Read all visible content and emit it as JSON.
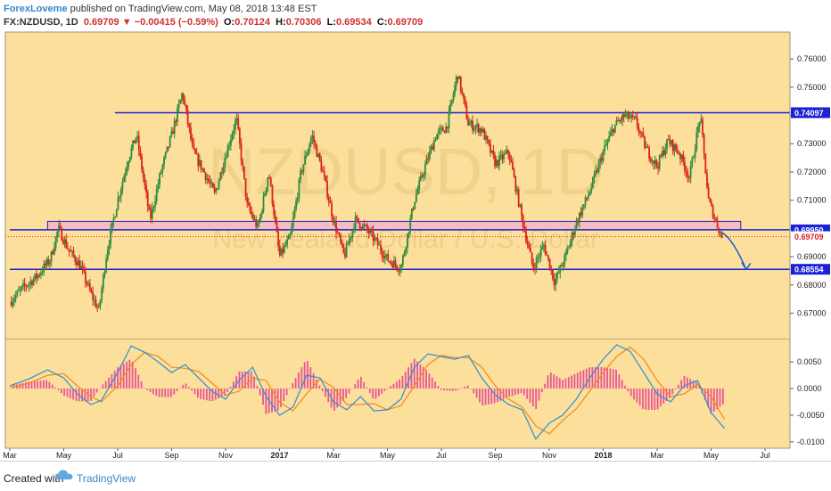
{
  "header": {
    "author": "ForexLoveme",
    "published": " published on TradingView.com, May 08, 2018 13:48 EST",
    "symbol": "FX:NZDUSD, 1D",
    "last": "0.69709",
    "change": "−0.00415 (−0.59%)",
    "o_label": "O:",
    "o": "0.70124",
    "h_label": "H:",
    "h": "0.70306",
    "l_label": "L:",
    "l": "0.69534",
    "c_label": "C:",
    "c": "0.69709"
  },
  "watermark": {
    "symbol": "NZDUSD, 1D",
    "name": "New Zealand Dollar / U.S. Dollar"
  },
  "footer": {
    "created": "Created with",
    "brand": "TradingView"
  },
  "colors": {
    "background": "#fcdf9a",
    "up_candle": "#2e8b3d",
    "down_candle": "#d9241c",
    "level_line": "#1a22d6",
    "zone_fill": "#f4b6c6",
    "macd_line": "#2e8fd6",
    "signal_line": "#f08a1c",
    "hist": "#e8569a",
    "arrow": "#1a5fd6"
  },
  "chart_data": {
    "type": "candlestick",
    "instrument": "NZDUSD",
    "timeframe": "1D",
    "x_tick_labels": [
      "Mar",
      "May",
      "Jul",
      "Sep",
      "Nov",
      "2017",
      "Mar",
      "May",
      "Jul",
      "Sep",
      "Nov",
      "2018",
      "Mar",
      "May",
      "Jul"
    ],
    "y_tick_labels": [
      "0.76000",
      "0.75000",
      "0.74000",
      "0.73000",
      "0.72000",
      "0.71000",
      "0.70000",
      "0.69000",
      "0.68000",
      "0.67000"
    ],
    "ylim": [
      0.661,
      0.7695
    ],
    "price_tags": [
      {
        "value": "0.74097",
        "y": 0.74097,
        "style": "blue"
      },
      {
        "value": "0.69950",
        "y": 0.6995,
        "style": "blue"
      },
      {
        "value": "0.69709",
        "y": 0.69709,
        "style": "red"
      },
      {
        "value": "0.68554",
        "y": 0.68554,
        "style": "blue"
      }
    ],
    "horizontal_lines": [
      {
        "y": 0.74097,
        "from_month": 3.9
      },
      {
        "y": 0.6995,
        "from_month": 0
      },
      {
        "y": 0.68554,
        "from_month": 0
      }
    ],
    "zone": {
      "y_low": 0.6995,
      "y_high": 0.7025,
      "from_month": 1.4,
      "to_month": 27.1
    },
    "projection_arrow": {
      "from": [
        26.4,
        0.6985
      ],
      "to": [
        27.3,
        0.6855
      ]
    },
    "price_path": [
      [
        0.0,
        0.674
      ],
      [
        0.5,
        0.679
      ],
      [
        1.0,
        0.683
      ],
      [
        1.5,
        0.689
      ],
      [
        1.8,
        0.7
      ],
      [
        2.2,
        0.692
      ],
      [
        2.6,
        0.687
      ],
      [
        3.0,
        0.677
      ],
      [
        3.3,
        0.671
      ],
      [
        3.6,
        0.692
      ],
      [
        4.0,
        0.71
      ],
      [
        4.4,
        0.725
      ],
      [
        4.7,
        0.733
      ],
      [
        5.2,
        0.703
      ],
      [
        5.6,
        0.72
      ],
      [
        6.0,
        0.733
      ],
      [
        6.4,
        0.748
      ],
      [
        6.8,
        0.727
      ],
      [
        7.2,
        0.72
      ],
      [
        7.6,
        0.712
      ],
      [
        8.0,
        0.726
      ],
      [
        8.4,
        0.739
      ],
      [
        8.8,
        0.708
      ],
      [
        9.2,
        0.7
      ],
      [
        9.6,
        0.72
      ],
      [
        10.0,
        0.69
      ],
      [
        10.4,
        0.697
      ],
      [
        10.8,
        0.72
      ],
      [
        11.2,
        0.733
      ],
      [
        11.6,
        0.72
      ],
      [
        12.0,
        0.703
      ],
      [
        12.4,
        0.69
      ],
      [
        12.8,
        0.703
      ],
      [
        13.2,
        0.7
      ],
      [
        13.6,
        0.695
      ],
      [
        14.0,
        0.689
      ],
      [
        14.5,
        0.686
      ],
      [
        15.0,
        0.71
      ],
      [
        15.4,
        0.722
      ],
      [
        15.8,
        0.733
      ],
      [
        16.2,
        0.736
      ],
      [
        16.6,
        0.755
      ],
      [
        17.0,
        0.737
      ],
      [
        17.5,
        0.735
      ],
      [
        18.0,
        0.723
      ],
      [
        18.5,
        0.727
      ],
      [
        19.0,
        0.703
      ],
      [
        19.4,
        0.686
      ],
      [
        19.8,
        0.694
      ],
      [
        20.2,
        0.681
      ],
      [
        20.6,
        0.69
      ],
      [
        21.0,
        0.702
      ],
      [
        21.5,
        0.713
      ],
      [
        22.0,
        0.727
      ],
      [
        22.4,
        0.736
      ],
      [
        22.8,
        0.74
      ],
      [
        23.2,
        0.738
      ],
      [
        23.6,
        0.728
      ],
      [
        24.0,
        0.722
      ],
      [
        24.4,
        0.731
      ],
      [
        24.8,
        0.727
      ],
      [
        25.2,
        0.718
      ],
      [
        25.6,
        0.74
      ],
      [
        25.9,
        0.71
      ],
      [
        26.2,
        0.702
      ],
      [
        26.4,
        0.697
      ]
    ],
    "macd_pane": {
      "y_tick_labels": [
        "0.0050",
        "0.0000",
        "-0.0050",
        "-0.0100"
      ],
      "ylim": [
        -0.0112,
        0.0092
      ],
      "macd_line": [
        [
          0.0,
          0.0005
        ],
        [
          0.7,
          0.0018
        ],
        [
          1.4,
          0.0035
        ],
        [
          2.0,
          0.002
        ],
        [
          2.5,
          -0.001
        ],
        [
          3.0,
          -0.003
        ],
        [
          3.4,
          -0.0022
        ],
        [
          4.0,
          0.003
        ],
        [
          4.5,
          0.008
        ],
        [
          5.0,
          0.0068
        ],
        [
          5.5,
          0.005
        ],
        [
          6.0,
          0.003
        ],
        [
          6.5,
          0.0045
        ],
        [
          7.0,
          0.002
        ],
        [
          7.5,
          -0.0005
        ],
        [
          8.0,
          -0.002
        ],
        [
          8.5,
          0.0015
        ],
        [
          9.0,
          0.004
        ],
        [
          9.5,
          -0.0015
        ],
        [
          10.0,
          -0.005
        ],
        [
          10.5,
          -0.0035
        ],
        [
          11.0,
          0.0025
        ],
        [
          11.5,
          0.002
        ],
        [
          12.0,
          -0.0025
        ],
        [
          12.5,
          -0.004
        ],
        [
          13.0,
          -0.0015
        ],
        [
          13.5,
          -0.0042
        ],
        [
          14.0,
          -0.004
        ],
        [
          14.5,
          -0.002
        ],
        [
          15.0,
          0.004
        ],
        [
          15.5,
          0.0065
        ],
        [
          16.0,
          0.006
        ],
        [
          16.5,
          0.0055
        ],
        [
          17.0,
          0.0062
        ],
        [
          17.5,
          0.002
        ],
        [
          18.0,
          -0.0012
        ],
        [
          18.5,
          -0.003
        ],
        [
          19.0,
          -0.004
        ],
        [
          19.5,
          -0.0095
        ],
        [
          20.0,
          -0.0065
        ],
        [
          20.5,
          -0.005
        ],
        [
          21.0,
          -0.002
        ],
        [
          21.5,
          0.002
        ],
        [
          22.0,
          0.0055
        ],
        [
          22.5,
          0.0082
        ],
        [
          23.0,
          0.007
        ],
        [
          23.5,
          0.003
        ],
        [
          24.0,
          -0.001
        ],
        [
          24.5,
          -0.0025
        ],
        [
          25.0,
          0.0005
        ],
        [
          25.5,
          0.0015
        ],
        [
          26.0,
          -0.0045
        ],
        [
          26.5,
          -0.0075
        ]
      ],
      "signal_line": [
        [
          0.0,
          0.0002
        ],
        [
          0.7,
          0.001
        ],
        [
          1.4,
          0.0025
        ],
        [
          2.0,
          0.0028
        ],
        [
          2.5,
          0.0005
        ],
        [
          3.0,
          -0.0015
        ],
        [
          3.4,
          -0.0025
        ],
        [
          4.0,
          0.0005
        ],
        [
          4.5,
          0.0045
        ],
        [
          5.0,
          0.0068
        ],
        [
          5.5,
          0.006
        ],
        [
          6.0,
          0.004
        ],
        [
          6.5,
          0.0038
        ],
        [
          7.0,
          0.0032
        ],
        [
          7.5,
          0.001
        ],
        [
          8.0,
          -0.0012
        ],
        [
          8.5,
          -0.0005
        ],
        [
          9.0,
          0.002
        ],
        [
          9.5,
          0.0015
        ],
        [
          10.0,
          -0.0025
        ],
        [
          10.5,
          -0.0042
        ],
        [
          11.0,
          -0.001
        ],
        [
          11.5,
          0.0018
        ],
        [
          12.0,
          0.0002
        ],
        [
          12.5,
          -0.003
        ],
        [
          13.0,
          -0.003
        ],
        [
          13.5,
          -0.0028
        ],
        [
          14.0,
          -0.004
        ],
        [
          14.5,
          -0.0032
        ],
        [
          15.0,
          0.0005
        ],
        [
          15.5,
          0.0045
        ],
        [
          16.0,
          0.0062
        ],
        [
          16.5,
          0.0058
        ],
        [
          17.0,
          0.0058
        ],
        [
          17.5,
          0.004
        ],
        [
          18.0,
          0.0005
        ],
        [
          18.5,
          -0.002
        ],
        [
          19.0,
          -0.0035
        ],
        [
          19.5,
          -0.007
        ],
        [
          20.0,
          -0.0085
        ],
        [
          20.5,
          -0.006
        ],
        [
          21.0,
          -0.0038
        ],
        [
          21.5,
          -0.0005
        ],
        [
          22.0,
          0.003
        ],
        [
          22.5,
          0.006
        ],
        [
          23.0,
          0.0078
        ],
        [
          23.5,
          0.0055
        ],
        [
          24.0,
          0.0015
        ],
        [
          24.5,
          -0.0015
        ],
        [
          25.0,
          -0.001
        ],
        [
          25.5,
          0.0008
        ],
        [
          26.0,
          -0.0015
        ],
        [
          26.5,
          -0.0058
        ]
      ]
    }
  }
}
